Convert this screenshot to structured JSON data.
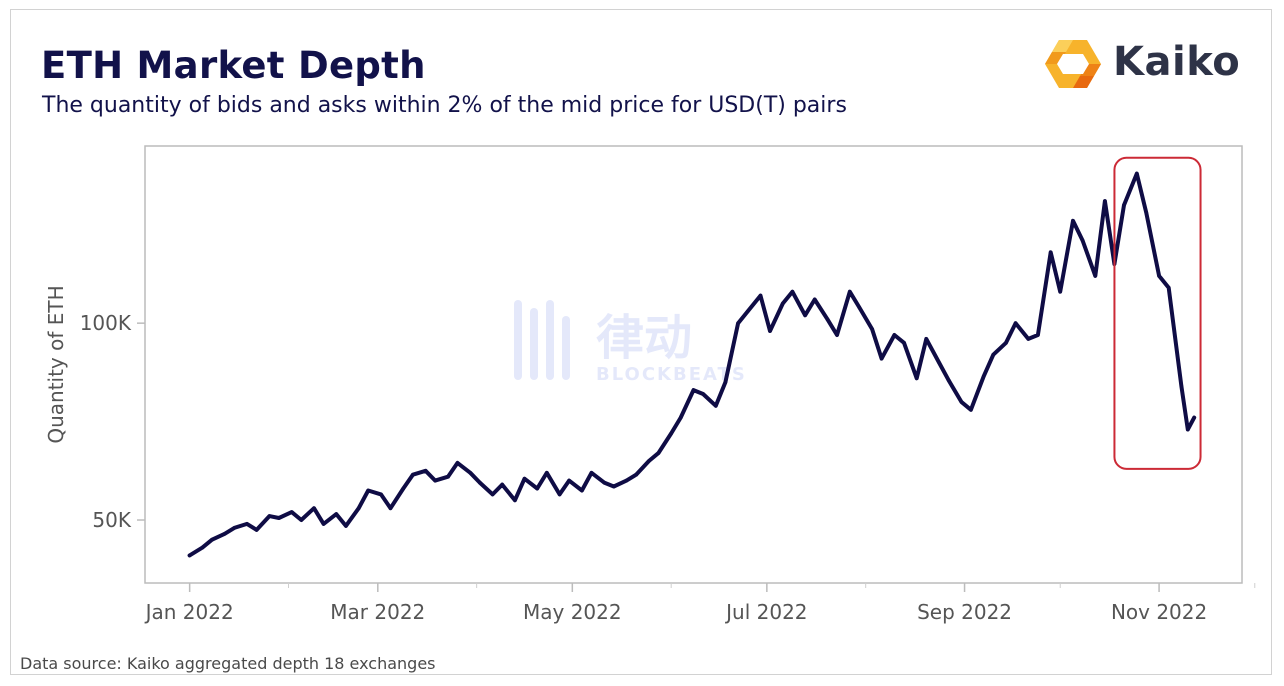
{
  "header": {
    "title": "ETH Market Depth",
    "subtitle": "The quantity of bids and asks within 2% of the mid price for USD(T) pairs"
  },
  "logo": {
    "text": "Kaiko",
    "icon": "kaiko-hexagon-icon",
    "colors": {
      "orange": "#f5a31a",
      "dark_orange": "#e8690f",
      "text": "#2e3347"
    }
  },
  "watermark": {
    "text": "律动",
    "subtext": "BLOCKBEATS"
  },
  "footer": {
    "source": "Data source: Kaiko aggregated depth 18 exchanges"
  },
  "colors": {
    "line": "#0f0c45",
    "highlight_box": "#cc2a36",
    "title": "#12124a"
  },
  "chart_data": {
    "type": "line",
    "title": "ETH Market Depth",
    "subtitle": "The quantity of bids and asks within 2% of the mid price for USD(T) pairs",
    "xlabel": "",
    "ylabel": "Quantity of ETH",
    "x_ticks": [
      "Jan 2022",
      "Mar 2022",
      "May 2022",
      "Jul 2022",
      "Sep 2022",
      "Nov 2022"
    ],
    "x_tick_dates": [
      "2022-01-01",
      "2022-03-01",
      "2022-05-01",
      "2022-07-01",
      "2022-09-01",
      "2022-11-01"
    ],
    "y_ticks": [
      50000,
      100000
    ],
    "y_tick_labels": [
      "50K",
      "100K"
    ],
    "xlim": [
      "2021-12-18",
      "2022-11-27"
    ],
    "ylim": [
      34000,
      145000
    ],
    "grid": false,
    "legend": "none",
    "highlight_range": {
      "x": [
        "2022-10-18",
        "2022-11-14"
      ],
      "y": [
        63000,
        142000
      ]
    },
    "series": [
      {
        "x": [
          "2022-01-01",
          "2022-01-05",
          "2022-01-08",
          "2022-01-12",
          "2022-01-15",
          "2022-01-19",
          "2022-01-22",
          "2022-01-26",
          "2022-01-29",
          "2022-02-02",
          "2022-02-05",
          "2022-02-09",
          "2022-02-12",
          "2022-02-16",
          "2022-02-19",
          "2022-02-23",
          "2022-02-26",
          "2022-03-02",
          "2022-03-05",
          "2022-03-09",
          "2022-03-12",
          "2022-03-16",
          "2022-03-19",
          "2022-03-23",
          "2022-03-26",
          "2022-03-30",
          "2022-04-02",
          "2022-04-06",
          "2022-04-09",
          "2022-04-13",
          "2022-04-16",
          "2022-04-20",
          "2022-04-23",
          "2022-04-27",
          "2022-04-30",
          "2022-05-04",
          "2022-05-07",
          "2022-05-11",
          "2022-05-14",
          "2022-05-18",
          "2022-05-21",
          "2022-05-25",
          "2022-05-28",
          "2022-06-01",
          "2022-06-04",
          "2022-06-08",
          "2022-06-11",
          "2022-06-15",
          "2022-06-18",
          "2022-06-22",
          "2022-06-25",
          "2022-06-29",
          "2022-07-02",
          "2022-07-06",
          "2022-07-09",
          "2022-07-13",
          "2022-07-16",
          "2022-07-20",
          "2022-07-23",
          "2022-07-27",
          "2022-07-30",
          "2022-08-03",
          "2022-08-06",
          "2022-08-10",
          "2022-08-13",
          "2022-08-17",
          "2022-08-20",
          "2022-08-24",
          "2022-08-27",
          "2022-08-31",
          "2022-09-03",
          "2022-09-07",
          "2022-09-10",
          "2022-09-14",
          "2022-09-17",
          "2022-09-21",
          "2022-09-24",
          "2022-09-28",
          "2022-10-01",
          "2022-10-05",
          "2022-10-08",
          "2022-10-12",
          "2022-10-15",
          "2022-10-18",
          "2022-10-21",
          "2022-10-25",
          "2022-10-28",
          "2022-11-01",
          "2022-11-04",
          "2022-11-08",
          "2022-11-10",
          "2022-11-12"
        ],
        "y": [
          41000,
          43000,
          45000,
          46500,
          48000,
          49000,
          47500,
          51000,
          50500,
          52000,
          50000,
          53000,
          49000,
          51500,
          48500,
          53000,
          57500,
          56500,
          53000,
          58000,
          61500,
          62500,
          60000,
          61000,
          64500,
          62000,
          59500,
          56500,
          59000,
          55000,
          60500,
          58000,
          62000,
          56500,
          60000,
          57500,
          62000,
          59500,
          58500,
          60000,
          61500,
          65000,
          67000,
          72000,
          76000,
          83000,
          82000,
          79000,
          85000,
          100000,
          103000,
          107000,
          98000,
          105000,
          108000,
          102000,
          106000,
          101000,
          97000,
          108000,
          104000,
          98500,
          91000,
          97000,
          95000,
          86000,
          96000,
          90000,
          85500,
          80000,
          78000,
          86500,
          92000,
          95000,
          100000,
          96000,
          97000,
          118000,
          108000,
          126000,
          121000,
          112000,
          131000,
          115000,
          130000,
          138000,
          128000,
          112000,
          109000,
          84000,
          73000,
          76000
        ]
      }
    ]
  }
}
